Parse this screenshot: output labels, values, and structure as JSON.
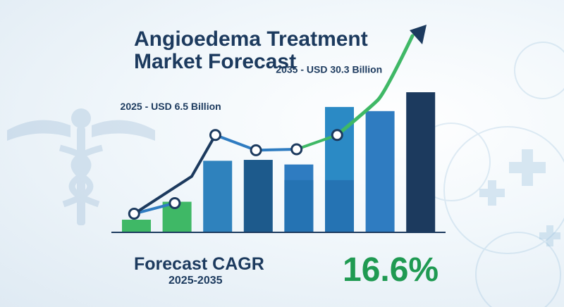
{
  "title_line1": "Angioedema Treatment",
  "title_line2": "Market Forecast",
  "cagr": {
    "label": "Forecast CAGR",
    "period": "2025-2035",
    "value": "16.6%"
  },
  "colors": {
    "navy": "#1c3a5e",
    "green": "#3fb866",
    "blue": "#2f7cc1",
    "cagr_green": "#1f9a52"
  },
  "chart_data": {
    "type": "bar",
    "title": "Angioedema Treatment Market Forecast",
    "xlabel": "",
    "ylabel": "",
    "grid": false,
    "bars": [
      {
        "value": 2.6,
        "color": "#3fb866"
      },
      {
        "value": 6.5,
        "color": "#3fb866"
      },
      {
        "value": 15.4,
        "color": "#2f82bd"
      },
      {
        "value": 15.6,
        "color": "#1d5a8c"
      },
      {
        "value": 14.6,
        "color": "#2f7cc1",
        "overlay": {
          "value": 11.2,
          "color": "#2573b3"
        }
      },
      {
        "value": 27.1,
        "color": "#2b8ac5",
        "overlay": {
          "value": 11.2,
          "color": "#2573b3"
        }
      },
      {
        "value": 26.2,
        "color": "#2f7cc1"
      },
      {
        "value": 30.3,
        "color": "#1c3a5e"
      }
    ],
    "ylim": [
      0,
      35
    ],
    "trend_line": {
      "points": [
        {
          "x": 0.3,
          "y": 3.9
        },
        {
          "x": 1.3,
          "y": 6.2
        },
        {
          "x": 2.3,
          "y": 21.0
        },
        {
          "x": 3.3,
          "y": 17.7
        },
        {
          "x": 4.3,
          "y": 17.9
        },
        {
          "x": 5.3,
          "y": 21.0
        },
        {
          "x": 6.3,
          "y": 28.6
        },
        {
          "x": 7.5,
          "y": 45.0
        }
      ],
      "marked_points": [
        0,
        1,
        2,
        3,
        4,
        5
      ]
    },
    "annotations": [
      {
        "text": "2025 - USD 6.5 Billion",
        "x": 1.2,
        "y": 26.5
      },
      {
        "text": "2035 - USD 30.3 Billion",
        "x": 5.1,
        "y": 34.5
      }
    ]
  }
}
